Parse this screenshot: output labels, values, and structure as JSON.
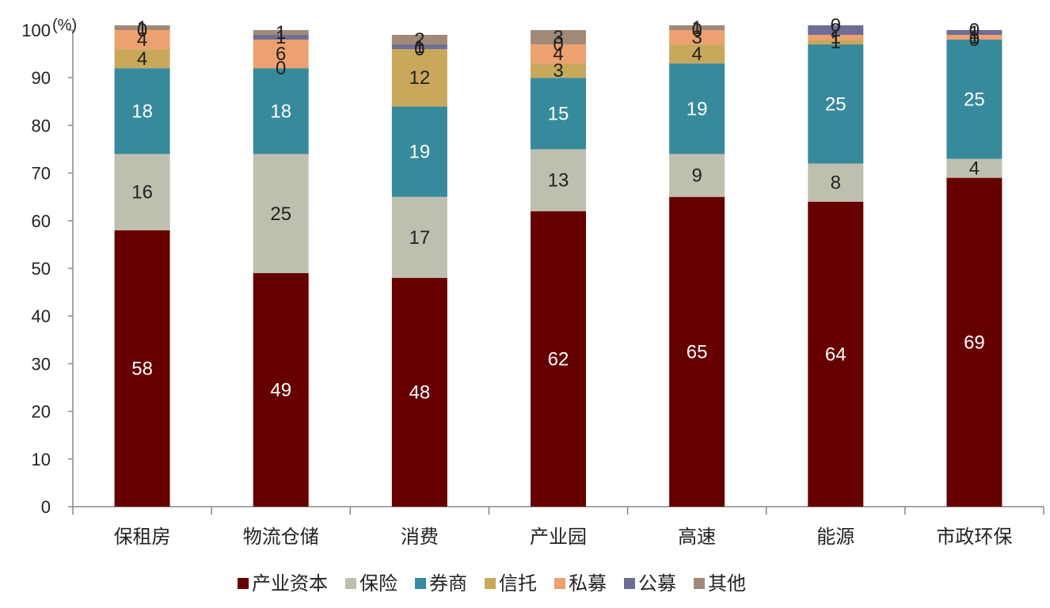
{
  "chart_data": {
    "type": "bar",
    "stacked": true,
    "unit": "(%)",
    "ylim": [
      0,
      100
    ],
    "yticks": [
      0,
      10,
      20,
      30,
      40,
      50,
      60,
      70,
      80,
      90,
      100
    ],
    "categories": [
      "保租房",
      "物流仓储",
      "消费",
      "产业园",
      "高速",
      "能源",
      "市政环保"
    ],
    "series": [
      {
        "name": "产业资本",
        "color": "#660000",
        "label_color": "#ffffff",
        "values": [
          58,
          49,
          48,
          62,
          65,
          64,
          69
        ]
      },
      {
        "name": "保险",
        "color": "#bfbfaf",
        "label_color": "#222222",
        "values": [
          16,
          25,
          17,
          13,
          9,
          8,
          4
        ]
      },
      {
        "name": "券商",
        "color": "#378a9b",
        "label_color": "#ffffff",
        "values": [
          18,
          18,
          19,
          15,
          19,
          25,
          25
        ]
      },
      {
        "name": "信托",
        "color": "#c9a85c",
        "label_color": "#222222",
        "values": [
          4,
          0,
          12,
          3,
          4,
          1,
          0
        ]
      },
      {
        "name": "私募",
        "color": "#eda070",
        "label_color": "#222222",
        "values": [
          4,
          6,
          0,
          4,
          3,
          1,
          1
        ]
      },
      {
        "name": "公募",
        "color": "#6e6e95",
        "label_color": "#222222",
        "values": [
          0,
          1,
          1,
          0,
          0,
          2,
          1
        ]
      },
      {
        "name": "其他",
        "color": "#a08a77",
        "label_color": "#222222",
        "values": [
          1,
          1,
          2,
          3,
          1,
          0,
          0
        ]
      }
    ],
    "legend": "bottom",
    "grid": false
  }
}
